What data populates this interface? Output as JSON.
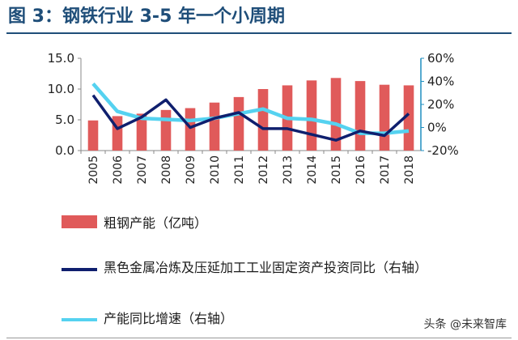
{
  "title": "图 3：钢铁行业 3-5 年一个小周期",
  "watermark": "头条 @未来智库",
  "colors": {
    "bars": "#e05a5a",
    "series1": "#0f1f6e",
    "series2": "#55d2f0",
    "title": "#1f4e79",
    "axis_right": "#1f8fc0"
  },
  "chart_data": {
    "type": "bar",
    "categories": [
      "2005",
      "2006",
      "2007",
      "2008",
      "2009",
      "2010",
      "2011",
      "2012",
      "2013",
      "2014",
      "2015",
      "2016",
      "2017",
      "2018"
    ],
    "series": [
      {
        "name": "粗钢产能（亿吨）",
        "type": "bar",
        "axis": "left",
        "values": [
          4.9,
          5.6,
          6.0,
          6.6,
          6.9,
          7.8,
          8.7,
          10.0,
          10.6,
          11.4,
          11.8,
          11.3,
          10.7,
          10.6
        ]
      },
      {
        "name": "黑色金属冶炼及压延加工工业固定资产投资同比（右轴）",
        "type": "line",
        "axis": "right",
        "values": [
          28,
          -1,
          9,
          24,
          0,
          8,
          13,
          -1,
          -1,
          -6,
          -11,
          -3,
          -7,
          12
        ]
      },
      {
        "name": "产能同比增速（右轴）",
        "type": "line",
        "axis": "right",
        "values": [
          38,
          14,
          8,
          7,
          6,
          8,
          12,
          16,
          8,
          7,
          3,
          -5,
          -5,
          -3
        ]
      }
    ],
    "ylim_left": [
      0,
      15
    ],
    "yticks_left": [
      "0.0",
      "5.0",
      "10.0",
      "15.0"
    ],
    "ylim_right": [
      -20,
      60
    ],
    "yticks_right": [
      "-20%",
      "0%",
      "20%",
      "40%",
      "60%"
    ],
    "grid": false,
    "legend_position": "bottom"
  },
  "legend": [
    {
      "label": "粗钢产能（亿吨）"
    },
    {
      "label": "黑色金属冶炼及压延加工工业固定资产投资同比（右轴）"
    },
    {
      "label": "产能同比增速（右轴）"
    }
  ]
}
